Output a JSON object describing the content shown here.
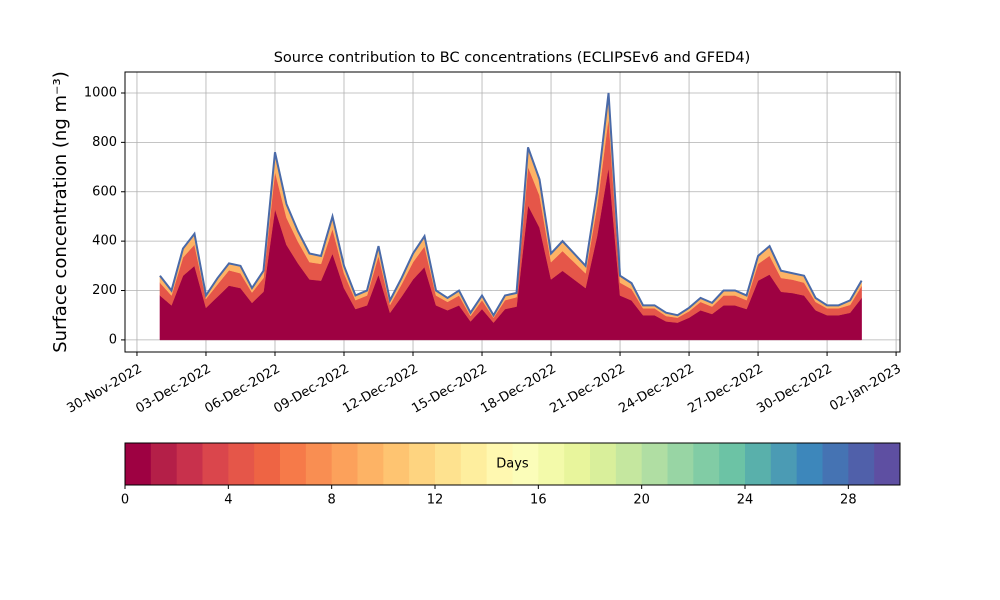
{
  "chart_data": {
    "type": "stacked_area",
    "title": "Source contribution to BC concentrations (ECLIPSEv6 and GFED4)",
    "y_label": "Surface concentration (ng m⁻³)",
    "x": [
      1,
      1.5,
      2,
      2.5,
      3,
      3.5,
      4,
      4.5,
      5,
      5.5,
      6,
      6.5,
      7,
      7.5,
      8,
      8.5,
      9,
      9.5,
      10,
      10.5,
      11,
      11.5,
      12,
      12.5,
      13,
      13.5,
      14,
      14.5,
      15,
      15.5,
      16,
      16.5,
      17,
      17.5,
      18,
      18.5,
      19,
      19.5,
      20,
      20.5,
      21,
      21.5,
      22,
      22.5,
      23,
      23.5,
      24,
      24.5,
      25,
      25.5,
      26,
      26.5,
      27,
      27.5,
      28,
      28.5,
      29,
      29.5,
      30,
      30.5,
      31,
      31.5
    ],
    "series": [
      {
        "color": "#9e0142",
        "values": [
          180,
          140,
          260,
          300,
          130,
          175,
          220,
          210,
          150,
          195,
          530,
          385,
          310,
          245,
          240,
          350,
          210,
          125,
          140,
          265,
          110,
          175,
          245,
          295,
          140,
          120,
          140,
          75,
          125,
          70,
          125,
          135,
          545,
          455,
          245,
          280,
          245,
          210,
          420,
          700,
          180,
          160,
          100,
          100,
          75,
          70,
          90,
          120,
          105,
          140,
          140,
          125,
          240,
          265,
          195,
          190,
          180,
          120,
          100,
          100,
          110,
          170
        ]
      },
      {
        "color": "#e55649",
        "values": [
          52,
          40,
          74,
          86,
          36,
          50,
          62,
          60,
          42,
          56,
          152,
          110,
          88,
          70,
          68,
          100,
          60,
          36,
          40,
          76,
          32,
          50,
          70,
          84,
          40,
          34,
          40,
          22,
          36,
          20,
          36,
          38,
          156,
          130,
          70,
          80,
          70,
          60,
          120,
          200,
          52,
          46,
          28,
          28,
          22,
          20,
          26,
          34,
          30,
          40,
          40,
          36,
          68,
          76,
          56,
          54,
          52,
          34,
          28,
          28,
          32,
          48
        ]
      },
      {
        "color": "#fdb365",
        "values": [
          28,
          20,
          36,
          44,
          14,
          25,
          28,
          30,
          18,
          29,
          78,
          55,
          42,
          35,
          32,
          50,
          30,
          19,
          20,
          39,
          18,
          25,
          35,
          41,
          20,
          16,
          20,
          13,
          19,
          10,
          19,
          17,
          79,
          65,
          35,
          40,
          35,
          30,
          60,
          100,
          28,
          24,
          12,
          12,
          13,
          10,
          14,
          16,
          15,
          20,
          20,
          19,
          32,
          39,
          29,
          26,
          28,
          16,
          12,
          12,
          18,
          22
        ]
      }
    ],
    "line_color": "#4a6aa8",
    "xlim": [
      -0.52,
      33.17
    ],
    "xticks": [
      {
        "value": 0,
        "label": "30-Nov-2022"
      },
      {
        "value": 3,
        "label": "03-Dec-2022"
      },
      {
        "value": 6,
        "label": "06-Dec-2022"
      },
      {
        "value": 9,
        "label": "09-Dec-2022"
      },
      {
        "value": 12,
        "label": "12-Dec-2022"
      },
      {
        "value": 15,
        "label": "15-Dec-2022"
      },
      {
        "value": 18,
        "label": "18-Dec-2022"
      },
      {
        "value": 21,
        "label": "21-Dec-2022"
      },
      {
        "value": 24,
        "label": "24-Dec-2022"
      },
      {
        "value": 27,
        "label": "27-Dec-2022"
      },
      {
        "value": 30,
        "label": "30-Dec-2022"
      },
      {
        "value": 33,
        "label": "02-Jan-2023"
      }
    ],
    "ylim": [
      -49,
      1085
    ],
    "yticks": [
      0,
      200,
      400,
      600,
      800,
      1000
    ],
    "grid": true,
    "colorbar": {
      "label": "Days",
      "lim": [
        0,
        30
      ],
      "ticks": [
        0,
        4,
        8,
        12,
        16,
        20,
        24,
        28
      ],
      "colors": [
        "#9e0142",
        "#b41f48",
        "#c8314c",
        "#da464c",
        "#e55649",
        "#ee6444",
        "#f67a49",
        "#f98e52",
        "#fca15b",
        "#fdb365",
        "#fec471",
        "#fed480",
        "#fee28f",
        "#feee9e",
        "#fff8b0",
        "#fbfdb9",
        "#f3faaa",
        "#e8f59c",
        "#d9ef9b",
        "#c5e79f",
        "#b0dea3",
        "#98d5a4",
        "#81cca5",
        "#6cc3a5",
        "#59b0ab",
        "#4b9bb4",
        "#3d87bb",
        "#4573b3",
        "#5060aa",
        "#5e4fa2"
      ]
    }
  }
}
